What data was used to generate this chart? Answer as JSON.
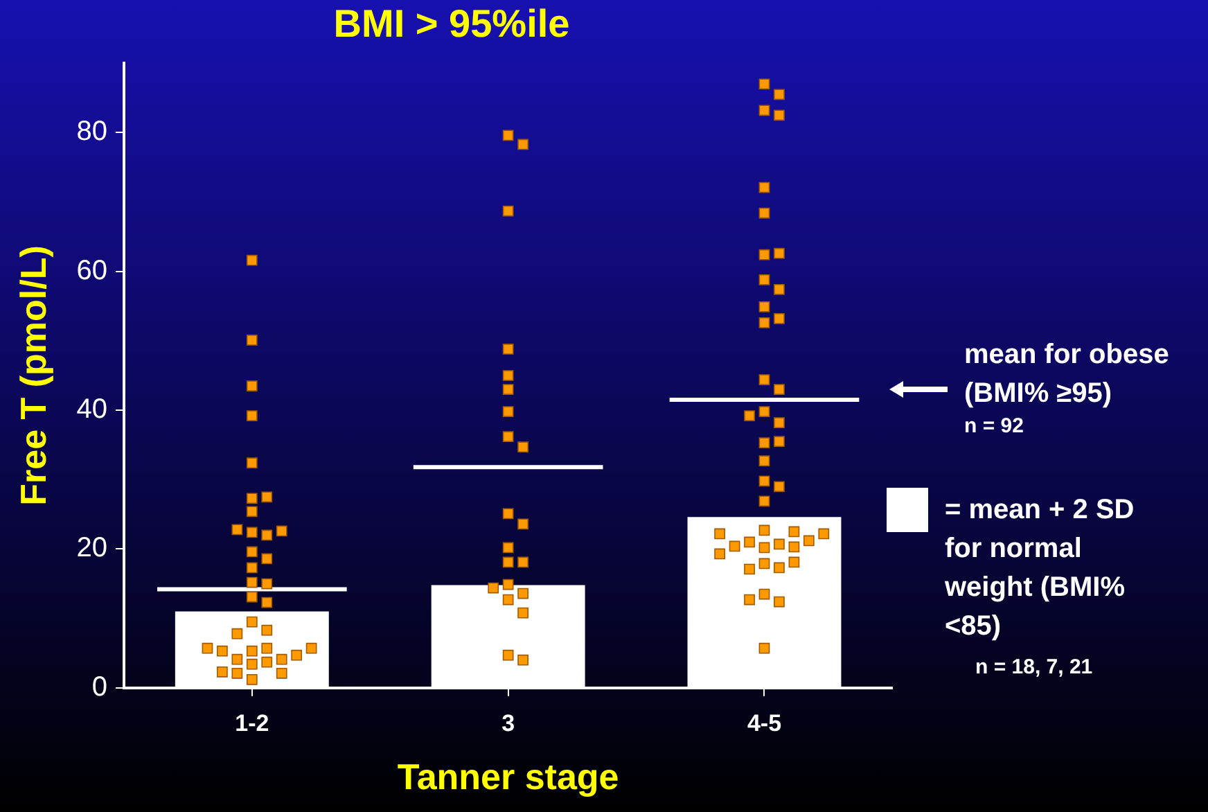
{
  "chart_data": {
    "type": "bar",
    "title": "BMI > 95%ile",
    "xlabel": "Tanner stage",
    "ylabel": "Free T (pmol/L)",
    "categories": [
      "1-2",
      "3",
      "4-5"
    ],
    "ylim": [
      0,
      90
    ],
    "yticks": [
      0,
      20,
      40,
      60,
      80
    ],
    "grid": false,
    "legend": "right",
    "series": [
      {
        "name": "= mean + 2 SD for normal weight (BMI% <85)",
        "color": "#ffffff",
        "values": [
          11.0,
          14.8,
          24.6
        ]
      },
      {
        "type": "scatter",
        "marker": "square",
        "color": "#ff9900",
        "x": [
          "1-2",
          "1-2",
          "1-2",
          "1-2",
          "1-2",
          "1-2",
          "1-2",
          "1-2",
          "1-2",
          "1-2",
          "1-2",
          "1-2",
          "1-2",
          "1-2",
          "1-2",
          "1-2",
          "1-2",
          "1-2",
          "1-2",
          "1-2",
          "1-2",
          "1-2",
          "1-2",
          "1-2",
          "1-2",
          "1-2",
          "1-2",
          "1-2",
          "1-2",
          "1-2",
          "1-2",
          "1-2",
          "1-2",
          "1-2",
          "1-2",
          "1-2",
          "3",
          "3",
          "3",
          "3",
          "3",
          "3",
          "3",
          "3",
          "3",
          "3",
          "3",
          "3",
          "3",
          "3",
          "3",
          "3",
          "3",
          "3",
          "3",
          "3",
          "3",
          "4-5",
          "4-5",
          "4-5",
          "4-5",
          "4-5",
          "4-5",
          "4-5",
          "4-5",
          "4-5",
          "4-5",
          "4-5",
          "4-5",
          "4-5",
          "4-5",
          "4-5",
          "4-5",
          "4-5",
          "4-5",
          "4-5",
          "4-5",
          "4-5",
          "4-5",
          "4-5",
          "4-5",
          "4-5",
          "4-5",
          "4-5",
          "4-5",
          "4-5",
          "4-5",
          "4-5",
          "4-5",
          "4-5",
          "4-5",
          "4-5",
          "4-5",
          "4-5",
          "4-5",
          "4-5",
          "4-5",
          "4-5",
          "4-5",
          "4-5"
        ],
        "values": [
          61.6,
          50.1,
          43.5,
          39.2,
          32.4,
          27.3,
          27.5,
          25.4,
          22.4,
          22.0,
          22.8,
          22.6,
          19.6,
          18.6,
          17.3,
          15.2,
          15.0,
          13.1,
          12.3,
          9.5,
          8.3,
          7.8,
          5.3,
          5.7,
          4.1,
          4.1,
          5.3,
          4.7,
          5.7,
          3.7,
          5.7,
          3.4,
          1.2,
          2.3,
          2.1,
          2.1,
          79.6,
          78.3,
          68.7,
          48.8,
          45.0,
          43.0,
          39.8,
          36.2,
          34.7,
          25.1,
          23.6,
          20.2,
          18.1,
          18.1,
          14.9,
          13.6,
          14.4,
          12.7,
          10.8,
          4.7,
          4.0,
          87.0,
          85.5,
          83.2,
          82.5,
          72.1,
          68.4,
          62.4,
          62.6,
          58.8,
          57.4,
          54.9,
          52.6,
          53.2,
          44.4,
          43.0,
          39.8,
          38.2,
          39.2,
          35.3,
          35.5,
          32.7,
          29.8,
          29.0,
          26.9,
          22.7,
          20.2,
          20.7,
          21.0,
          20.3,
          20.4,
          21.2,
          22.2,
          22.2,
          22.5,
          17.9,
          17.3,
          17.1,
          18.1,
          19.3,
          13.5,
          12.4,
          12.7,
          5.7
        ]
      }
    ],
    "ref_lines": [
      {
        "axis": "y",
        "value": 14.2,
        "color": "#ffffff"
      },
      {
        "axis": "y",
        "value": 31.8,
        "color": "#ffffff"
      },
      {
        "axis": "y",
        "value": 41.5,
        "color": "#ffffff"
      }
    ],
    "annotations": [
      "mean for obese (BMI% ≥95)",
      "n = 92",
      "n = 18, 7, 21"
    ]
  }
}
